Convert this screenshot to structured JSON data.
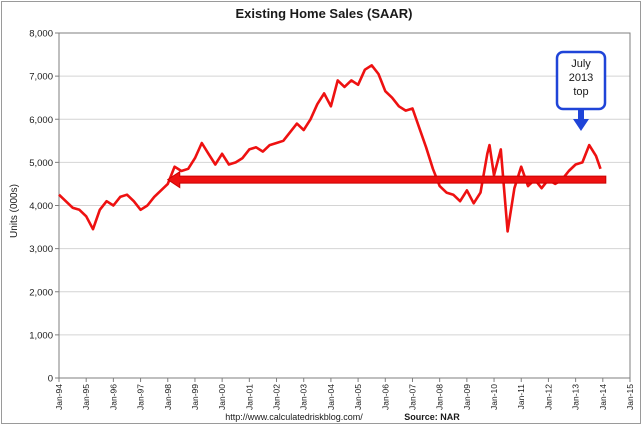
{
  "chart_data": {
    "type": "line",
    "title": "Existing Home Sales (SAAR)",
    "xlabel": "",
    "ylabel": "Units (000s)",
    "ylim": [
      0,
      8000
    ],
    "yticks": [
      0,
      1000,
      2000,
      3000,
      4000,
      5000,
      6000,
      7000,
      8000
    ],
    "ytick_labels": [
      "0",
      "1,000",
      "2,000",
      "3,000",
      "4,000",
      "5,000",
      "6,000",
      "7,000",
      "8,000"
    ],
    "xlim": [
      1994.0,
      2015.0
    ],
    "xtick_labels": [
      "Jan-94",
      "Jan-95",
      "Jan-96",
      "Jan-97",
      "Jan-98",
      "Jan-99",
      "Jan-00",
      "Jan-01",
      "Jan-02",
      "Jan-03",
      "Jan-04",
      "Jan-05",
      "Jan-06",
      "Jan-07",
      "Jan-08",
      "Jan-09",
      "Jan-10",
      "Jan-11",
      "Jan-12",
      "Jan-13",
      "Jan-14",
      "Jan-15"
    ],
    "grid": true,
    "series": [
      {
        "color": "#ee1111",
        "x": [
          "1994-01",
          "1994-04",
          "1994-07",
          "1994-10",
          "1995-01",
          "1995-04",
          "1995-07",
          "1995-10",
          "1996-01",
          "1996-04",
          "1996-07",
          "1996-10",
          "1997-01",
          "1997-04",
          "1997-07",
          "1997-10",
          "1998-01",
          "1998-04",
          "1998-07",
          "1998-10",
          "1999-01",
          "1999-04",
          "1999-07",
          "1999-10",
          "2000-01",
          "2000-04",
          "2000-07",
          "2000-10",
          "2001-01",
          "2001-04",
          "2001-07",
          "2001-10",
          "2002-01",
          "2002-04",
          "2002-07",
          "2002-10",
          "2003-01",
          "2003-04",
          "2003-07",
          "2003-10",
          "2004-01",
          "2004-04",
          "2004-07",
          "2004-10",
          "2005-01",
          "2005-04",
          "2005-07",
          "2005-10",
          "2006-01",
          "2006-04",
          "2006-07",
          "2006-10",
          "2007-01",
          "2007-04",
          "2007-07",
          "2007-10",
          "2008-01",
          "2008-04",
          "2008-07",
          "2008-10",
          "2009-01",
          "2009-04",
          "2009-07",
          "2009-10",
          "2009-11",
          "2010-01",
          "2010-04",
          "2010-07",
          "2010-10",
          "2011-01",
          "2011-04",
          "2011-07",
          "2011-10",
          "2012-01",
          "2012-04",
          "2012-07",
          "2012-10",
          "2013-01",
          "2013-04",
          "2013-07",
          "2013-10",
          "2013-12"
        ],
        "values": [
          4250,
          4100,
          3950,
          3900,
          3750,
          3450,
          3900,
          4100,
          4000,
          4200,
          4250,
          4100,
          3900,
          4000,
          4200,
          4350,
          4500,
          4900,
          4800,
          4850,
          5100,
          5450,
          5200,
          4950,
          5200,
          4950,
          5000,
          5100,
          5300,
          5350,
          5250,
          5400,
          5450,
          5500,
          5700,
          5900,
          5750,
          6000,
          6350,
          6600,
          6300,
          6900,
          6750,
          6900,
          6800,
          7150,
          7250,
          7050,
          6650,
          6500,
          6300,
          6200,
          6250,
          5800,
          5350,
          4850,
          4450,
          4300,
          4250,
          4100,
          4350,
          4050,
          4300,
          5200,
          5400,
          4700,
          5300,
          3400,
          4400,
          4900,
          4450,
          4600,
          4400,
          4600,
          4500,
          4600,
          4800,
          4950,
          5000,
          5400,
          5150,
          4850
        ]
      }
    ],
    "annotations": {
      "arrow_level": 4600,
      "arrow_from": "2014-01",
      "arrow_to": "1998-01",
      "callout_text": [
        "July",
        "2013",
        "top"
      ]
    }
  },
  "footer": {
    "url": "http://www.calculatedriskblog.com/",
    "source": "Source: NAR"
  }
}
